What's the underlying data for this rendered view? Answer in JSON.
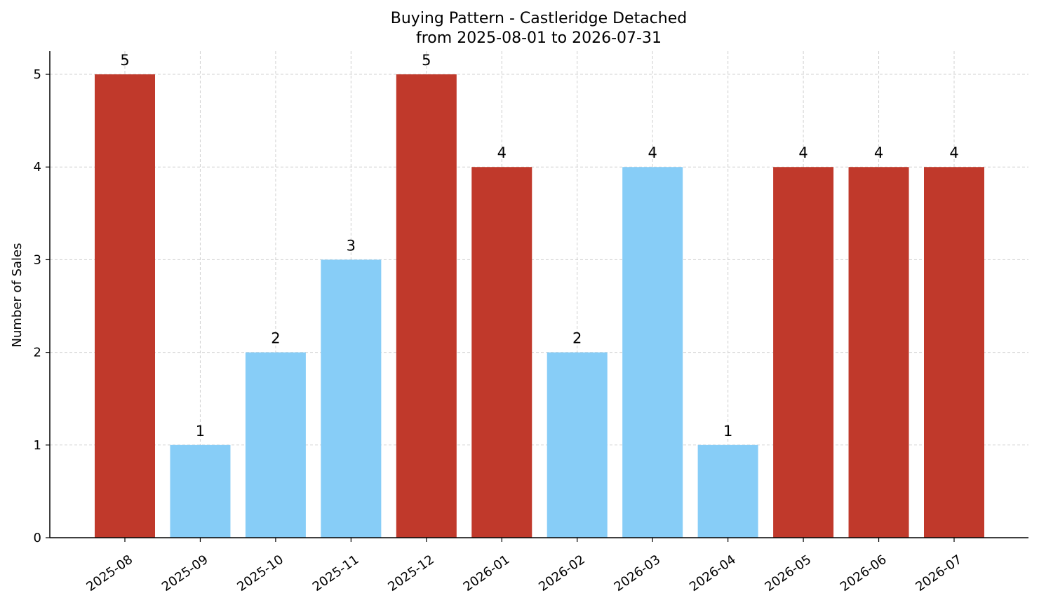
{
  "chart_data": {
    "type": "bar",
    "title": "Buying Pattern - Castleridge Detached",
    "subtitle": "from 2025-08-01 to 2026-07-31",
    "xlabel": "",
    "ylabel": "Number of Sales",
    "categories": [
      "2025-08",
      "2025-09",
      "2025-10",
      "2025-11",
      "2025-12",
      "2026-01",
      "2026-02",
      "2026-03",
      "2026-04",
      "2026-05",
      "2026-06",
      "2026-07"
    ],
    "values": [
      5,
      1,
      2,
      3,
      5,
      4,
      2,
      4,
      1,
      4,
      4,
      4
    ],
    "bar_colors": [
      "#c0392b",
      "#87cdf7",
      "#87cdf7",
      "#87cdf7",
      "#c0392b",
      "#c0392b",
      "#87cdf7",
      "#87cdf7",
      "#87cdf7",
      "#c0392b",
      "#c0392b",
      "#c0392b"
    ],
    "ylim": [
      0,
      5.25
    ],
    "yticks": [
      0,
      1,
      2,
      3,
      4,
      5
    ],
    "grid": true,
    "data_labels": true
  }
}
